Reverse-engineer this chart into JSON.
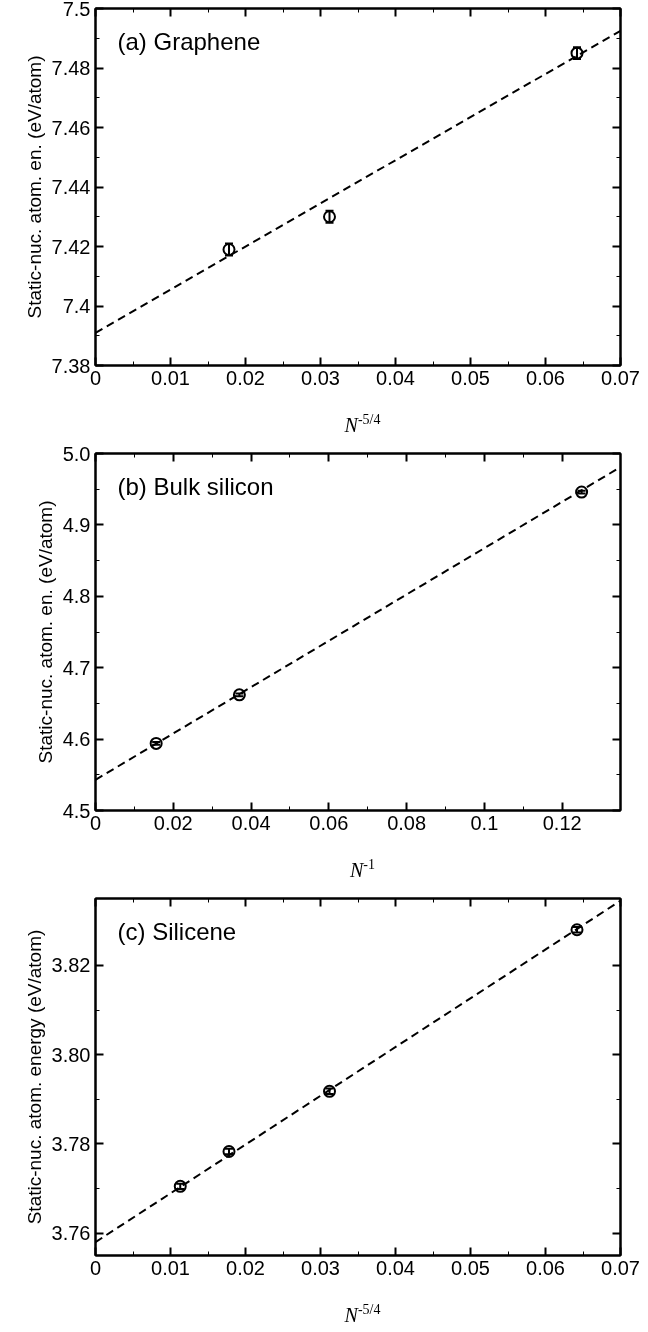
{
  "chart_data": [
    {
      "type": "scatter",
      "title": "(a) Graphene",
      "xlabel": "N$^{-5/4}$",
      "ylabel": "Static-nuc. atom. en. (eV/atom)",
      "xlim": [
        0,
        0.07
      ],
      "ylim": [
        7.38,
        7.5
      ],
      "xticks": [
        0,
        0.01,
        0.02,
        0.03,
        0.04,
        0.05,
        0.06,
        0.07
      ],
      "yticks": [
        7.38,
        7.4,
        7.42,
        7.44,
        7.46,
        7.48,
        7.5
      ],
      "grid": false,
      "marker": "circle",
      "series": [
        {
          "color": "#000000",
          "x": [
            0.0178,
            0.0312,
            0.0642
          ],
          "values": [
            7.419,
            7.43,
            7.485
          ],
          "errors": [
            0.002,
            0.002,
            0.002
          ]
        },
        {
          "type": "line",
          "color": "#000000",
          "line_style": "dashed",
          "marker": "none",
          "x": [
            0,
            0.07
          ],
          "values": [
            7.391,
            7.4925
          ]
        }
      ]
    },
    {
      "type": "scatter",
      "title": "(b) Bulk silicon",
      "xlabel": "N$^{-1}$",
      "ylabel": "Static-nuc. atom. en. (eV/atom)",
      "xlim": [
        0,
        0.135
      ],
      "ylim": [
        4.5,
        5.0
      ],
      "xticks": [
        0,
        0.02,
        0.04,
        0.06,
        0.08,
        0.1,
        0.12
      ],
      "yticks": [
        4.5,
        4.6,
        4.7,
        4.8,
        4.9,
        {
          "value": 5.0,
          "label": "5.0"
        }
      ],
      "grid": false,
      "marker": "circle",
      "series": [
        {
          "color": "#000000",
          "x": [
            0.0156,
            0.037,
            0.125
          ],
          "values": [
            4.594,
            4.662,
            4.946
          ],
          "errors": [
            0.002,
            0.002,
            0.002
          ]
        },
        {
          "type": "line",
          "color": "#000000",
          "line_style": "dashed",
          "marker": "none",
          "x": [
            0,
            0.135
          ],
          "values": [
            4.543,
            4.981
          ]
        }
      ]
    },
    {
      "type": "scatter",
      "title": "(c) Silicene",
      "xlabel": "N$^{-5/4}$",
      "ylabel": "Static-nuc. atom. energy (eV/atom)",
      "xlim": [
        0,
        0.07
      ],
      "ylim": [
        3.755,
        3.835
      ],
      "xticks": [
        0,
        0.01,
        0.02,
        0.03,
        0.04,
        0.05,
        0.06,
        0.07
      ],
      "yticks": [
        3.76,
        3.78,
        {
          "value": 3.8,
          "label": "3.80"
        },
        3.82
      ],
      "grid": false,
      "marker": "circle",
      "series": [
        {
          "color": "#000000",
          "x": [
            0.0113,
            0.0178,
            0.0312,
            0.0642
          ],
          "values": [
            3.7705,
            3.7783,
            3.7918,
            3.828
          ],
          "errors": [
            0.0006,
            0.0006,
            0.0006,
            0.0006
          ]
        },
        {
          "type": "line",
          "color": "#000000",
          "line_style": "dashed",
          "marker": "none",
          "x": [
            0,
            0.07
          ],
          "values": [
            3.758,
            3.8345
          ]
        }
      ]
    }
  ]
}
